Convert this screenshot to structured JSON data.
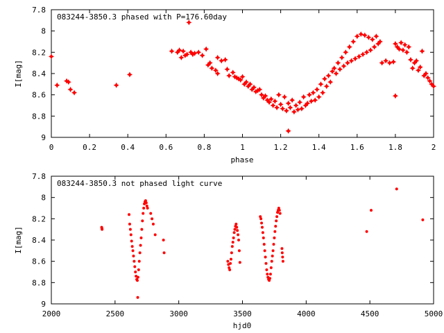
{
  "chart_data": [
    {
      "type": "scatter",
      "title": "083244-3850.3 phased with P=176.60day",
      "xlabel": "phase",
      "ylabel": "I[mag]",
      "xlim": [
        0,
        2
      ],
      "ylim": [
        9,
        7.8
      ],
      "y_inverted": true,
      "xticks": [
        "0",
        "0.2",
        "0.4",
        "0.6",
        "0.8",
        "1",
        "1.2",
        "1.4",
        "1.6",
        "1.8",
        "2"
      ],
      "yticks": [
        "7.8",
        "8",
        "8.2",
        "8.4",
        "8.6",
        "8.8",
        "9"
      ],
      "marker": "star",
      "color": "#ff0000",
      "points": [
        [
          0.0,
          8.24
        ],
        [
          0.03,
          8.51
        ],
        [
          0.08,
          8.47
        ],
        [
          0.09,
          8.48
        ],
        [
          0.1,
          8.55
        ],
        [
          0.12,
          8.58
        ],
        [
          0.34,
          8.51
        ],
        [
          0.41,
          8.41
        ],
        [
          0.63,
          8.19
        ],
        [
          0.66,
          8.2
        ],
        [
          0.67,
          8.18
        ],
        [
          0.68,
          8.25
        ],
        [
          0.69,
          8.19
        ],
        [
          0.7,
          8.23
        ],
        [
          0.71,
          8.22
        ],
        [
          0.72,
          7.92
        ],
        [
          0.73,
          8.2
        ],
        [
          0.74,
          8.22
        ],
        [
          0.75,
          8.21
        ],
        [
          0.77,
          8.2
        ],
        [
          0.79,
          8.23
        ],
        [
          0.81,
          8.17
        ],
        [
          0.82,
          8.32
        ],
        [
          0.83,
          8.3
        ],
        [
          0.84,
          8.35
        ],
        [
          0.86,
          8.37
        ],
        [
          0.87,
          8.4
        ],
        [
          0.87,
          8.25
        ],
        [
          0.89,
          8.28
        ],
        [
          0.91,
          8.27
        ],
        [
          0.92,
          8.36
        ],
        [
          0.93,
          8.42
        ],
        [
          0.95,
          8.39
        ],
        [
          0.96,
          8.43
        ],
        [
          0.97,
          8.44
        ],
        [
          0.98,
          8.45
        ],
        [
          0.99,
          8.46
        ],
        [
          1.0,
          8.43
        ],
        [
          1.01,
          8.5
        ],
        [
          1.02,
          8.48
        ],
        [
          1.03,
          8.52
        ],
        [
          1.04,
          8.5
        ],
        [
          1.05,
          8.55
        ],
        [
          1.06,
          8.53
        ],
        [
          1.07,
          8.57
        ],
        [
          1.08,
          8.56
        ],
        [
          1.09,
          8.55
        ],
        [
          1.1,
          8.6
        ],
        [
          1.11,
          8.63
        ],
        [
          1.12,
          8.61
        ],
        [
          1.13,
          8.65
        ],
        [
          1.14,
          8.67
        ],
        [
          1.15,
          8.64
        ],
        [
          1.16,
          8.7
        ],
        [
          1.17,
          8.66
        ],
        [
          1.18,
          8.72
        ],
        [
          1.19,
          8.6
        ],
        [
          1.2,
          8.69
        ],
        [
          1.21,
          8.73
        ],
        [
          1.22,
          8.62
        ],
        [
          1.23,
          8.75
        ],
        [
          1.24,
          8.68
        ],
        [
          1.24,
          8.94
        ],
        [
          1.25,
          8.72
        ],
        [
          1.26,
          8.65
        ],
        [
          1.27,
          8.76
        ],
        [
          1.28,
          8.7
        ],
        [
          1.29,
          8.74
        ],
        [
          1.3,
          8.67
        ],
        [
          1.31,
          8.73
        ],
        [
          1.32,
          8.62
        ],
        [
          1.33,
          8.7
        ],
        [
          1.34,
          8.68
        ],
        [
          1.35,
          8.6
        ],
        [
          1.36,
          8.66
        ],
        [
          1.37,
          8.58
        ],
        [
          1.38,
          8.65
        ],
        [
          1.39,
          8.55
        ],
        [
          1.4,
          8.62
        ],
        [
          1.41,
          8.5
        ],
        [
          1.42,
          8.58
        ],
        [
          1.43,
          8.45
        ],
        [
          1.44,
          8.52
        ],
        [
          1.45,
          8.42
        ],
        [
          1.46,
          8.48
        ],
        [
          1.47,
          8.38
        ],
        [
          1.48,
          8.35
        ],
        [
          1.49,
          8.4
        ],
        [
          1.5,
          8.3
        ],
        [
          1.51,
          8.36
        ],
        [
          1.52,
          8.25
        ],
        [
          1.53,
          8.33
        ],
        [
          1.54,
          8.2
        ],
        [
          1.55,
          8.3
        ],
        [
          1.56,
          8.15
        ],
        [
          1.57,
          8.28
        ],
        [
          1.58,
          8.1
        ],
        [
          1.59,
          8.26
        ],
        [
          1.6,
          8.05
        ],
        [
          1.61,
          8.24
        ],
        [
          1.62,
          8.03
        ],
        [
          1.63,
          8.22
        ],
        [
          1.64,
          8.04
        ],
        [
          1.65,
          8.2
        ],
        [
          1.66,
          8.06
        ],
        [
          1.67,
          8.18
        ],
        [
          1.68,
          8.08
        ],
        [
          1.69,
          8.15
        ],
        [
          1.7,
          8.05
        ],
        [
          1.71,
          8.12
        ],
        [
          1.72,
          8.1
        ],
        [
          1.73,
          8.3
        ],
        [
          1.75,
          8.28
        ],
        [
          1.77,
          8.3
        ],
        [
          1.79,
          8.29
        ],
        [
          1.8,
          8.12
        ],
        [
          1.8,
          8.61
        ],
        [
          1.81,
          8.15
        ],
        [
          1.82,
          8.17
        ],
        [
          1.83,
          8.11
        ],
        [
          1.84,
          8.18
        ],
        [
          1.85,
          8.13
        ],
        [
          1.86,
          8.2
        ],
        [
          1.87,
          8.15
        ],
        [
          1.88,
          8.27
        ],
        [
          1.89,
          8.35
        ],
        [
          1.9,
          8.3
        ],
        [
          1.91,
          8.28
        ],
        [
          1.92,
          8.37
        ],
        [
          1.93,
          8.34
        ],
        [
          1.94,
          8.19
        ],
        [
          1.95,
          8.42
        ],
        [
          1.96,
          8.4
        ],
        [
          1.97,
          8.44
        ],
        [
          1.98,
          8.47
        ],
        [
          1.99,
          8.5
        ],
        [
          2.0,
          8.52
        ]
      ]
    },
    {
      "type": "scatter",
      "title": "083244-3850.3 not phased light curve",
      "xlabel": "hjd0",
      "ylabel": "I[mag]",
      "xlim": [
        2000,
        5000
      ],
      "ylim": [
        9,
        7.8
      ],
      "y_inverted": true,
      "xticks": [
        "2000",
        "2500",
        "3000",
        "3500",
        "4000",
        "4500",
        "5000"
      ],
      "yticks": [
        "7.8",
        "8",
        "8.2",
        "8.4",
        "8.6",
        "8.8",
        "9"
      ],
      "marker": "dot",
      "color": "#ff0000",
      "points": [
        [
          2395,
          8.28
        ],
        [
          2397,
          8.29
        ],
        [
          2398,
          8.3
        ],
        [
          2610,
          8.16
        ],
        [
          2615,
          8.25
        ],
        [
          2620,
          8.3
        ],
        [
          2625,
          8.35
        ],
        [
          2630,
          8.41
        ],
        [
          2635,
          8.46
        ],
        [
          2640,
          8.5
        ],
        [
          2645,
          8.55
        ],
        [
          2650,
          8.6
        ],
        [
          2655,
          8.65
        ],
        [
          2660,
          8.7
        ],
        [
          2665,
          8.74
        ],
        [
          2670,
          8.77
        ],
        [
          2675,
          8.78
        ],
        [
          2678,
          8.94
        ],
        [
          2680,
          8.75
        ],
        [
          2685,
          8.68
        ],
        [
          2690,
          8.6
        ],
        [
          2695,
          8.52
        ],
        [
          2700,
          8.45
        ],
        [
          2705,
          8.38
        ],
        [
          2710,
          8.3
        ],
        [
          2715,
          8.22
        ],
        [
          2720,
          8.15
        ],
        [
          2725,
          8.1
        ],
        [
          2730,
          8.06
        ],
        [
          2735,
          8.04
        ],
        [
          2740,
          8.03
        ],
        [
          2745,
          8.05
        ],
        [
          2750,
          8.08
        ],
        [
          2755,
          8.1
        ],
        [
          2780,
          8.15
        ],
        [
          2790,
          8.2
        ],
        [
          2800,
          8.25
        ],
        [
          2815,
          8.35
        ],
        [
          2880,
          8.4
        ],
        [
          2885,
          8.52
        ],
        [
          3385,
          8.6
        ],
        [
          3390,
          8.63
        ],
        [
          3395,
          8.66
        ],
        [
          3400,
          8.68
        ],
        [
          3405,
          8.62
        ],
        [
          3410,
          8.58
        ],
        [
          3415,
          8.52
        ],
        [
          3420,
          8.46
        ],
        [
          3425,
          8.42
        ],
        [
          3430,
          8.38
        ],
        [
          3435,
          8.33
        ],
        [
          3440,
          8.3
        ],
        [
          3445,
          8.27
        ],
        [
          3450,
          8.25
        ],
        [
          3455,
          8.28
        ],
        [
          3460,
          8.31
        ],
        [
          3465,
          8.35
        ],
        [
          3470,
          8.4
        ],
        [
          3475,
          8.5
        ],
        [
          3480,
          8.61
        ],
        [
          3640,
          8.18
        ],
        [
          3645,
          8.2
        ],
        [
          3650,
          8.24
        ],
        [
          3655,
          8.28
        ],
        [
          3660,
          8.33
        ],
        [
          3665,
          8.38
        ],
        [
          3670,
          8.44
        ],
        [
          3675,
          8.5
        ],
        [
          3680,
          8.56
        ],
        [
          3685,
          8.62
        ],
        [
          3690,
          8.68
        ],
        [
          3695,
          8.72
        ],
        [
          3700,
          8.75
        ],
        [
          3705,
          8.77
        ],
        [
          3710,
          8.78
        ],
        [
          3715,
          8.76
        ],
        [
          3720,
          8.72
        ],
        [
          3725,
          8.66
        ],
        [
          3730,
          8.6
        ],
        [
          3735,
          8.55
        ],
        [
          3740,
          8.5
        ],
        [
          3745,
          8.44
        ],
        [
          3750,
          8.38
        ],
        [
          3755,
          8.32
        ],
        [
          3760,
          8.27
        ],
        [
          3765,
          8.22
        ],
        [
          3770,
          8.18
        ],
        [
          3775,
          8.14
        ],
        [
          3780,
          8.12
        ],
        [
          3785,
          8.1
        ],
        [
          3790,
          8.12
        ],
        [
          3795,
          8.15
        ],
        [
          3810,
          8.48
        ],
        [
          3812,
          8.52
        ],
        [
          3815,
          8.56
        ],
        [
          3818,
          8.6
        ],
        [
          4475,
          8.32
        ],
        [
          4510,
          8.12
        ],
        [
          4710,
          7.92
        ],
        [
          4915,
          8.21
        ]
      ]
    }
  ]
}
